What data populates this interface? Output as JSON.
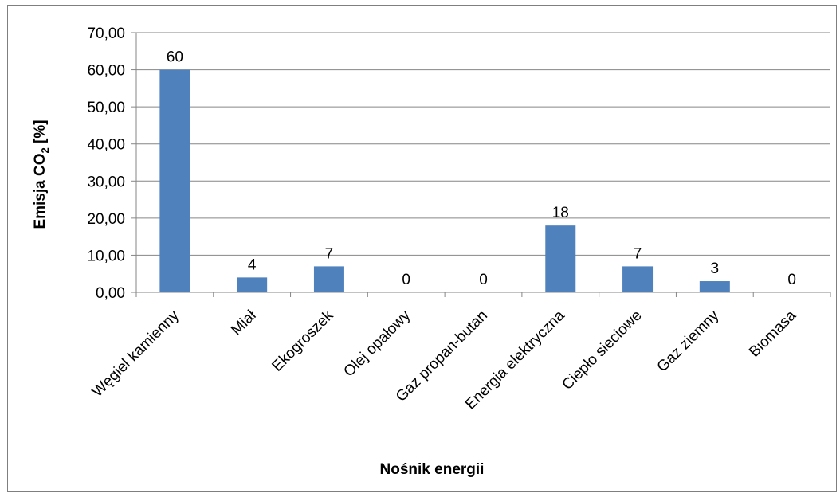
{
  "chart_data": {
    "type": "bar",
    "title": "",
    "categories": [
      "Węgiel kamienny",
      "Miał",
      "Ekogroszek",
      "Olej opałowy",
      "Gaz propan-butan",
      "Energia elektryczna",
      "Ciepło sieciowe",
      "Gaz ziemny",
      "Biomasa"
    ],
    "values": [
      60,
      4,
      7,
      0,
      0,
      18,
      7,
      3,
      0
    ],
    "data_labels": [
      "60",
      "4",
      "7",
      "0",
      "0",
      "18",
      "7",
      "3",
      "0"
    ],
    "xlabel": "Nośnik energii",
    "ylabel": "Emisja CO",
    "ylabel_subscript": "2",
    "ylabel_suffix": " [%]",
    "ylim": [
      0,
      70
    ],
    "yticks": [
      "0,00",
      "10,00",
      "20,00",
      "30,00",
      "40,00",
      "50,00",
      "60,00",
      "70,00"
    ],
    "grid": true,
    "legend": "none",
    "bar_color": "#4f81bd"
  }
}
